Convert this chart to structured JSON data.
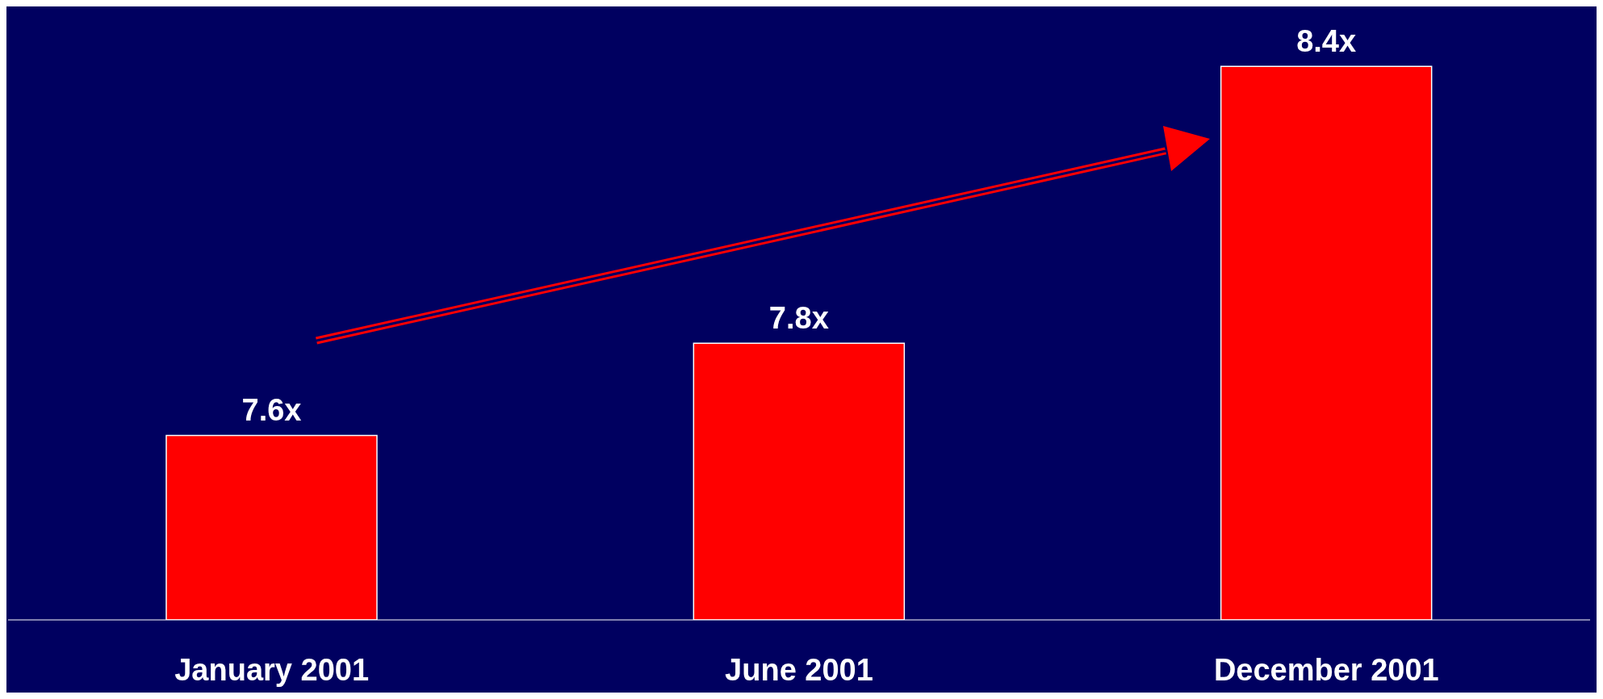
{
  "chart_data": {
    "type": "bar",
    "categories": [
      "January 2001",
      "June 2001",
      "December 2001"
    ],
    "values": [
      7.6,
      7.8,
      8.4
    ],
    "value_labels": [
      "7.6x",
      "7.8x",
      "8.4x"
    ],
    "color": "#ff0000",
    "ylim": [
      7.2,
      8.53
    ],
    "tick_labels": "x",
    "grid": false,
    "legend": false
  }
}
